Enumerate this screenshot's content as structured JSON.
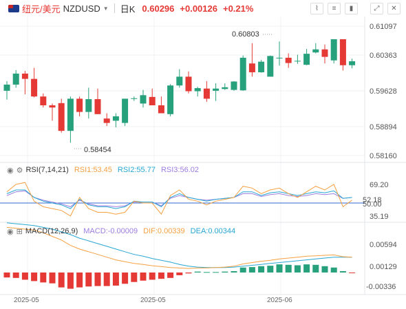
{
  "header": {
    "pair_cn": "纽元/美元",
    "symbol": "NZDUSD",
    "timeframe": "日K",
    "price": "0.60296",
    "change": "+0.00126",
    "change_pct": "+0.21%"
  },
  "main_chart": {
    "price_labels": [
      "0.61097",
      "0.60363",
      "0.59628",
      "0.58894",
      "0.58160"
    ],
    "high_annotation": "0.60803",
    "low_annotation": "0.58454",
    "up_color": "#26a17b",
    "down_color": "#e53935",
    "candles": [
      {
        "o": 0.5963,
        "h": 0.5985,
        "l": 0.5943,
        "c": 0.5977
      },
      {
        "o": 0.5977,
        "h": 0.601,
        "l": 0.597,
        "c": 0.6002
      },
      {
        "o": 0.6002,
        "h": 0.6008,
        "l": 0.5955,
        "c": 0.599
      },
      {
        "o": 0.599,
        "h": 0.6015,
        "l": 0.5948,
        "c": 0.595
      },
      {
        "o": 0.595,
        "h": 0.5957,
        "l": 0.5925,
        "c": 0.593
      },
      {
        "o": 0.593,
        "h": 0.5934,
        "l": 0.5895,
        "c": 0.5925
      },
      {
        "o": 0.5935,
        "h": 0.5945,
        "l": 0.5868,
        "c": 0.5872
      },
      {
        "o": 0.5872,
        "h": 0.595,
        "l": 0.5845,
        "c": 0.5945
      },
      {
        "o": 0.5945,
        "h": 0.595,
        "l": 0.5905,
        "c": 0.5915
      },
      {
        "o": 0.5915,
        "h": 0.597,
        "l": 0.59,
        "c": 0.5944
      },
      {
        "o": 0.5944,
        "h": 0.5968,
        "l": 0.591,
        "c": 0.591
      },
      {
        "o": 0.59,
        "h": 0.5912,
        "l": 0.5883,
        "c": 0.589
      },
      {
        "o": 0.5895,
        "h": 0.5912,
        "l": 0.588,
        "c": 0.5905
      },
      {
        "o": 0.589,
        "h": 0.5945,
        "l": 0.5883,
        "c": 0.5945
      },
      {
        "o": 0.5945,
        "h": 0.595,
        "l": 0.594,
        "c": 0.5946
      },
      {
        "o": 0.5934,
        "h": 0.5965,
        "l": 0.5925,
        "c": 0.5953
      },
      {
        "o": 0.5949,
        "h": 0.5968,
        "l": 0.593,
        "c": 0.593
      },
      {
        "o": 0.593,
        "h": 0.595,
        "l": 0.5912,
        "c": 0.5912
      },
      {
        "o": 0.591,
        "h": 0.5978,
        "l": 0.5905,
        "c": 0.5975
      },
      {
        "o": 0.5975,
        "h": 0.6012,
        "l": 0.597,
        "c": 0.5995
      },
      {
        "o": 0.5995,
        "h": 0.6007,
        "l": 0.5957,
        "c": 0.5962
      },
      {
        "o": 0.5962,
        "h": 0.5972,
        "l": 0.595,
        "c": 0.5969
      },
      {
        "o": 0.5968,
        "h": 0.5985,
        "l": 0.5938,
        "c": 0.5945
      },
      {
        "o": 0.5963,
        "h": 0.598,
        "l": 0.594,
        "c": 0.5968
      },
      {
        "o": 0.5967,
        "h": 0.598,
        "l": 0.5965,
        "c": 0.5971
      },
      {
        "o": 0.5965,
        "h": 0.5985,
        "l": 0.5963,
        "c": 0.5984
      },
      {
        "o": 0.5964,
        "h": 0.6043,
        "l": 0.5963,
        "c": 0.6038
      },
      {
        "o": 0.6025,
        "h": 0.6071,
        "l": 0.5995,
        "c": 0.6005
      },
      {
        "o": 0.6005,
        "h": 0.6033,
        "l": 0.6004,
        "c": 0.6029
      },
      {
        "o": 0.5995,
        "h": 0.6043,
        "l": 0.5995,
        "c": 0.6042
      },
      {
        "o": 0.6038,
        "h": 0.6075,
        "l": 0.602,
        "c": 0.6038
      },
      {
        "o": 0.6038,
        "h": 0.6048,
        "l": 0.6015,
        "c": 0.6026
      },
      {
        "o": 0.6031,
        "h": 0.6045,
        "l": 0.6024,
        "c": 0.6031
      },
      {
        "o": 0.6022,
        "h": 0.6058,
        "l": 0.6021,
        "c": 0.6047
      },
      {
        "o": 0.605,
        "h": 0.6071,
        "l": 0.6048,
        "c": 0.6057
      },
      {
        "o": 0.6057,
        "h": 0.6068,
        "l": 0.6025,
        "c": 0.604
      },
      {
        "o": 0.6032,
        "h": 0.608,
        "l": 0.6025,
        "c": 0.608
      },
      {
        "o": 0.608,
        "h": 0.608,
        "l": 0.6009,
        "c": 0.6021
      },
      {
        "o": 0.6021,
        "h": 0.6036,
        "l": 0.6014,
        "c": 0.603
      }
    ]
  },
  "rsi": {
    "title": "RSI(7,14,21)",
    "rsi1": "RSI1:53.45",
    "rsi2": "RSI2:55.77",
    "rsi3": "RSI3:56.02",
    "labels": [
      "69.20",
      "52.18",
      "50.00",
      "35.19"
    ],
    "colors": {
      "rsi1": "#f5a040",
      "rsi2": "#26a6d1",
      "rsi3": "#9c7ce0"
    },
    "rsi1_values": [
      62,
      70,
      72,
      52,
      46,
      44,
      42,
      36,
      56,
      44,
      40,
      40,
      38,
      40,
      52,
      50,
      50,
      38,
      58,
      64,
      54,
      52,
      48,
      52,
      54,
      56,
      68,
      66,
      60,
      64,
      66,
      60,
      56,
      62,
      68,
      64,
      70,
      46,
      53
    ],
    "rsi2_values": [
      60,
      64,
      64,
      56,
      52,
      50,
      48,
      44,
      54,
      48,
      46,
      46,
      44,
      46,
      52,
      51,
      51,
      46,
      56,
      60,
      56,
      54,
      52,
      54,
      55,
      56,
      62,
      62,
      58,
      61,
      62,
      60,
      58,
      60,
      62,
      61,
      63,
      55,
      56
    ],
    "rsi3_values": [
      58,
      62,
      63,
      56,
      53,
      51,
      49,
      46,
      53,
      49,
      47,
      47,
      46,
      47,
      51,
      51,
      51,
      47,
      55,
      58,
      56,
      54,
      53,
      54,
      55,
      56,
      60,
      60,
      57,
      59,
      60,
      58,
      57,
      58,
      60,
      59,
      60,
      55,
      56
    ]
  },
  "macd": {
    "title": "MACD(12,26,9)",
    "macd_label": "MACD:-0.00009",
    "dif_label": "DIF:0.00339",
    "dea_label": "DEA:0.00344",
    "labels": [
      "0.00594",
      "0.00129",
      "-0.00336"
    ],
    "colors": {
      "dif": "#f5a040",
      "dea": "#26a6d1"
    },
    "hist": [
      -0.0011,
      -0.0012,
      -0.0016,
      -0.0019,
      -0.0022,
      -0.0024,
      -0.0033,
      -0.0036,
      -0.0033,
      -0.0031,
      -0.003,
      -0.003,
      -0.0029,
      -0.0025,
      -0.0021,
      -0.0018,
      -0.0016,
      -0.0014,
      -0.0012,
      -0.0006,
      -0.0002,
      0.0002,
      0.0001,
      0.0001,
      0.0002,
      0.0003,
      0.0011,
      0.0012,
      0.0014,
      0.0015,
      0.0018,
      0.0017,
      0.0016,
      0.0018,
      0.0017,
      0.0014,
      0.0011,
      0.0003,
      -0.0001
    ],
    "dif": [
      0.01,
      0.0098,
      0.0096,
      0.0094,
      0.0088,
      0.008,
      0.0072,
      0.006,
      0.0052,
      0.0046,
      0.004,
      0.0034,
      0.0028,
      0.0024,
      0.002,
      0.0018,
      0.0015,
      0.0013,
      0.0011,
      0.001,
      0.0009,
      0.001,
      0.001,
      0.0011,
      0.0012,
      0.0014,
      0.0019,
      0.0022,
      0.0025,
      0.0027,
      0.003,
      0.0032,
      0.0034,
      0.0036,
      0.0037,
      0.0038,
      0.0039,
      0.0035,
      0.0034
    ],
    "dea": [
      0.011,
      0.0108,
      0.0106,
      0.0104,
      0.01,
      0.0096,
      0.009,
      0.0084,
      0.0076,
      0.007,
      0.0064,
      0.0058,
      0.0052,
      0.0046,
      0.004,
      0.0036,
      0.0031,
      0.0027,
      0.0023,
      0.0018,
      0.0014,
      0.0012,
      0.0011,
      0.0011,
      0.0011,
      0.0012,
      0.0014,
      0.0016,
      0.0018,
      0.002,
      0.0022,
      0.0024,
      0.0026,
      0.0028,
      0.003,
      0.0032,
      0.0034,
      0.0034,
      0.0034
    ]
  },
  "x_axis": {
    "labels": [
      "2025-05",
      "2025-05",
      "2025-06"
    ]
  },
  "icons": [
    "dropdown-caret-icon",
    "chart-type-icon",
    "settings-icon",
    "candle-style-icon",
    "expand-icon",
    "close-icon",
    "eye-icon",
    "gear-icon",
    "checkbox-icon"
  ]
}
